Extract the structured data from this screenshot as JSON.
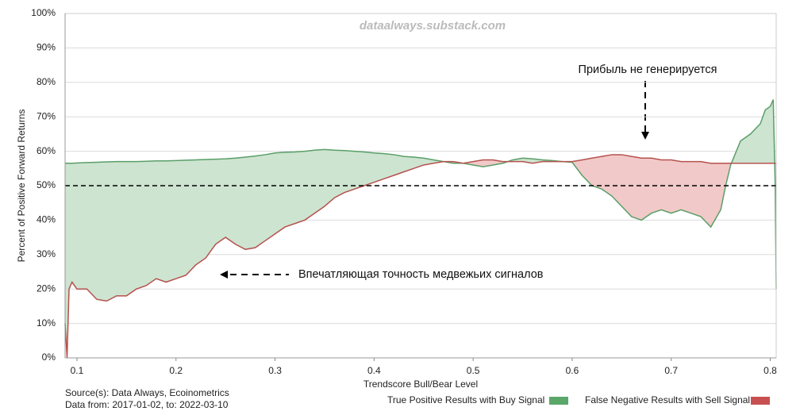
{
  "chart_data": {
    "type": "area_between",
    "watermark": "dataalways.substack.com",
    "xlabel": "Trendscore Bull/Bear Level",
    "ylabel": "Percent of Positive Forward Returns",
    "source": "Source(s): Data Always, Ecoinometrics",
    "date_range": "Data from: 2017-01-02, to: 2022-03-10",
    "reference_line": 50,
    "annotations": [
      {
        "text": "Прибыль не генерируется"
      },
      {
        "text": "Впечатляющая точность медвежьих сигналов"
      }
    ],
    "xlim": [
      0.088,
      0.806
    ],
    "xticks": [
      0.1,
      0.2,
      0.3,
      0.4,
      0.5,
      0.6,
      0.7,
      0.8
    ],
    "ylim": [
      0,
      100
    ],
    "yticks": [
      {
        "value": 0,
        "label": "0%"
      },
      {
        "value": 10,
        "label": "10%"
      },
      {
        "value": 20,
        "label": "20%"
      },
      {
        "value": 30,
        "label": "30%"
      },
      {
        "value": 40,
        "label": "40%"
      },
      {
        "value": 50,
        "label": "50%"
      },
      {
        "value": 60,
        "label": "60%"
      },
      {
        "value": 70,
        "label": "70%"
      },
      {
        "value": 80,
        "label": "80%"
      },
      {
        "value": 90,
        "label": "90%"
      },
      {
        "value": 100,
        "label": "100%"
      }
    ],
    "grid": true,
    "x": [
      0.088,
      0.09,
      0.092,
      0.095,
      0.1,
      0.11,
      0.12,
      0.13,
      0.14,
      0.15,
      0.16,
      0.17,
      0.18,
      0.19,
      0.2,
      0.21,
      0.22,
      0.23,
      0.24,
      0.25,
      0.26,
      0.27,
      0.28,
      0.29,
      0.3,
      0.31,
      0.32,
      0.33,
      0.34,
      0.35,
      0.36,
      0.37,
      0.38,
      0.39,
      0.4,
      0.41,
      0.42,
      0.43,
      0.44,
      0.45,
      0.46,
      0.47,
      0.48,
      0.49,
      0.5,
      0.51,
      0.52,
      0.53,
      0.54,
      0.55,
      0.56,
      0.57,
      0.58,
      0.59,
      0.6,
      0.61,
      0.62,
      0.63,
      0.64,
      0.65,
      0.66,
      0.67,
      0.68,
      0.69,
      0.7,
      0.71,
      0.72,
      0.73,
      0.74,
      0.75,
      0.755,
      0.76,
      0.77,
      0.78,
      0.79,
      0.795,
      0.8,
      0.803,
      0.805,
      0.806
    ],
    "series": [
      {
        "name": "True Positive Results with Buy Signal",
        "color": "#5a9e68",
        "fill": "#cde4d0",
        "legend_color": "#5aa869",
        "values": [
          56.5,
          56.5,
          56.5,
          56.5,
          56.6,
          56.7,
          56.8,
          56.9,
          57,
          57,
          57,
          57.1,
          57.2,
          57.2,
          57.3,
          57.4,
          57.5,
          57.6,
          57.7,
          57.8,
          58,
          58.3,
          58.6,
          59,
          59.5,
          59.7,
          59.8,
          60,
          60.3,
          60.5,
          60.3,
          60.2,
          60,
          59.8,
          59.5,
          59.3,
          59,
          58.5,
          58.3,
          58,
          57.5,
          57,
          56.5,
          56.5,
          56,
          55.5,
          56,
          56.5,
          57.5,
          58,
          57.8,
          57.5,
          57.3,
          57,
          56.8,
          53,
          50,
          49,
          47,
          44,
          41,
          40,
          42,
          43,
          42,
          43,
          42,
          41,
          38,
          43,
          50,
          56,
          63,
          65,
          68,
          72,
          73,
          75,
          50,
          20
        ]
      },
      {
        "name": "False Negative Results with Sell Signal",
        "color": "#b5524e",
        "fill": "#f1c9c8",
        "legend_color": "#c85050",
        "values": [
          10,
          0,
          20,
          22,
          20,
          20,
          17,
          16.5,
          18,
          18,
          20,
          21,
          23,
          22,
          23,
          24,
          27,
          29,
          33,
          35,
          33,
          31.5,
          32,
          34,
          36,
          38,
          39,
          40,
          42,
          44,
          46.5,
          48,
          49,
          50,
          51,
          52,
          53,
          54,
          55,
          56,
          56.5,
          57,
          57,
          56.5,
          57,
          57.5,
          57.5,
          57,
          57,
          57,
          56.5,
          57,
          57,
          57,
          57,
          57.5,
          58,
          58.5,
          59,
          59,
          58.5,
          58,
          58,
          57.5,
          57.5,
          57,
          57,
          57,
          56.5,
          56.5,
          56.5,
          56.5,
          56.5,
          56.5,
          56.5,
          56.5,
          56.5,
          56.5,
          56.5,
          56.5
        ]
      }
    ]
  }
}
